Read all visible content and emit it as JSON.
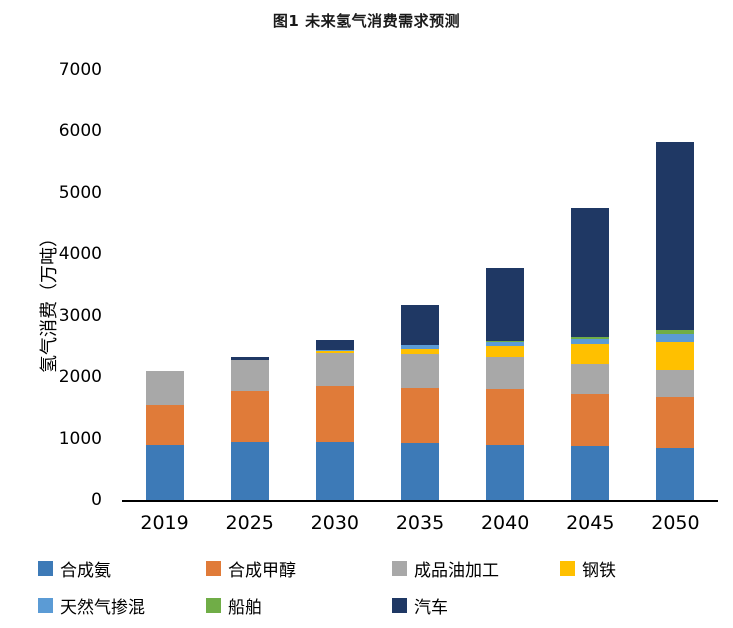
{
  "title": "图1 未来氢气消费需求预测",
  "chart_data": {
    "type": "bar",
    "stacked": true,
    "title": "图1 未来氢气消费需求预测",
    "xlabel": "",
    "ylabel": "氢气消费（万吨）",
    "ylim": [
      0,
      7000
    ],
    "yticks": [
      0,
      1000,
      2000,
      3000,
      4000,
      5000,
      6000,
      7000
    ],
    "grid": false,
    "legend_position": "bottom",
    "categories": [
      "2019",
      "2025",
      "2030",
      "2035",
      "2040",
      "2045",
      "2050"
    ],
    "series": [
      {
        "name": "合成氨",
        "color": "#3D7AB7",
        "values": [
          900,
          950,
          950,
          930,
          900,
          880,
          850
        ]
      },
      {
        "name": "合成甲醇",
        "color": "#E07B39",
        "values": [
          650,
          820,
          900,
          900,
          900,
          840,
          820
        ]
      },
      {
        "name": "成品油加工",
        "color": "#A8A8A8",
        "values": [
          550,
          510,
          550,
          550,
          530,
          500,
          450
        ]
      },
      {
        "name": "钢铁",
        "color": "#FFC000",
        "values": [
          0,
          0,
          30,
          80,
          180,
          320,
          450
        ]
      },
      {
        "name": "天然气掺混",
        "color": "#5B9BD5",
        "values": [
          0,
          0,
          20,
          60,
          60,
          80,
          130
        ]
      },
      {
        "name": "船舶",
        "color": "#70AD47",
        "values": [
          0,
          0,
          0,
          0,
          20,
          30,
          70
        ]
      },
      {
        "name": "汽车",
        "color": "#1F3864",
        "values": [
          0,
          50,
          150,
          650,
          1180,
          2110,
          3060
        ]
      }
    ],
    "totals": [
      2100,
      2330,
      2600,
      3170,
      3770,
      4760,
      5830
    ]
  }
}
